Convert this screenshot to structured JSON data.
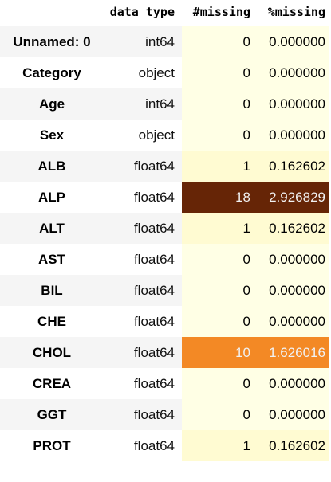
{
  "table": {
    "columns": {
      "data_type": "data type",
      "missing_count": "#missing",
      "missing_pct": "%missing"
    },
    "rows": [
      {
        "name": "Unnamed: 0",
        "dtype": "int64",
        "missing": "0",
        "pct": "0.000000",
        "bg": "#ffffe5",
        "fg": "#000000"
      },
      {
        "name": "Category",
        "dtype": "object",
        "missing": "0",
        "pct": "0.000000",
        "bg": "#ffffe5",
        "fg": "#000000"
      },
      {
        "name": "Age",
        "dtype": "int64",
        "missing": "0",
        "pct": "0.000000",
        "bg": "#ffffe5",
        "fg": "#000000"
      },
      {
        "name": "Sex",
        "dtype": "object",
        "missing": "0",
        "pct": "0.000000",
        "bg": "#ffffe5",
        "fg": "#000000"
      },
      {
        "name": "ALB",
        "dtype": "float64",
        "missing": "1",
        "pct": "0.162602",
        "bg": "#fffbd2",
        "fg": "#000000"
      },
      {
        "name": "ALP",
        "dtype": "float64",
        "missing": "18",
        "pct": "2.926829",
        "bg": "#662506",
        "fg": "#f1f1f1"
      },
      {
        "name": "ALT",
        "dtype": "float64",
        "missing": "1",
        "pct": "0.162602",
        "bg": "#fffbd2",
        "fg": "#000000"
      },
      {
        "name": "AST",
        "dtype": "float64",
        "missing": "0",
        "pct": "0.000000",
        "bg": "#ffffe5",
        "fg": "#000000"
      },
      {
        "name": "BIL",
        "dtype": "float64",
        "missing": "0",
        "pct": "0.000000",
        "bg": "#ffffe5",
        "fg": "#000000"
      },
      {
        "name": "CHE",
        "dtype": "float64",
        "missing": "0",
        "pct": "0.000000",
        "bg": "#ffffe5",
        "fg": "#000000"
      },
      {
        "name": "CHOL",
        "dtype": "float64",
        "missing": "10",
        "pct": "1.626016",
        "bg": "#f38925",
        "fg": "#f1f1f1"
      },
      {
        "name": "CREA",
        "dtype": "float64",
        "missing": "0",
        "pct": "0.000000",
        "bg": "#ffffe5",
        "fg": "#000000"
      },
      {
        "name": "GGT",
        "dtype": "float64",
        "missing": "0",
        "pct": "0.000000",
        "bg": "#ffffe5",
        "fg": "#000000"
      },
      {
        "name": "PROT",
        "dtype": "float64",
        "missing": "1",
        "pct": "0.162602",
        "bg": "#fffbd2",
        "fg": "#000000"
      }
    ]
  }
}
